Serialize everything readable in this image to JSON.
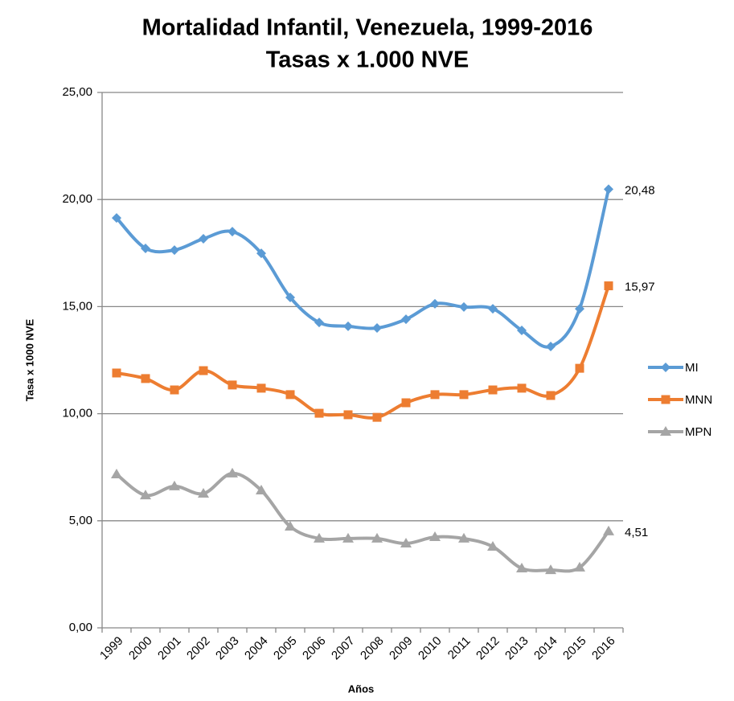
{
  "chart_data": {
    "type": "line",
    "title": "Mortalidad Infantil, Venezuela, 1999-2016",
    "subtitle": "Tasas x 1.000 NVE",
    "x_label": "Años",
    "y_label": "Tasa x 1000 NVE",
    "categories": [
      "1999",
      "2000",
      "2001",
      "2002",
      "2003",
      "2004",
      "2005",
      "2006",
      "2007",
      "2008",
      "2009",
      "2010",
      "2011",
      "2012",
      "2013",
      "2014",
      "2015",
      "2016"
    ],
    "series": [
      {
        "name": "MI",
        "color": "#5b9bd5",
        "marker": "diamond",
        "values": [
          19.14,
          17.72,
          17.64,
          18.17,
          18.5,
          17.49,
          15.43,
          14.26,
          14.08,
          14.0,
          14.41,
          15.13,
          14.98,
          14.9,
          13.89,
          13.14,
          14.9,
          20.48
        ],
        "value_labels": [
          null,
          null,
          null,
          null,
          null,
          null,
          null,
          null,
          null,
          null,
          null,
          null,
          null,
          null,
          null,
          null,
          null,
          "20,48"
        ]
      },
      {
        "name": "MNN",
        "color": "#ed7d31",
        "marker": "square",
        "values": [
          11.9,
          11.64,
          11.11,
          12.01,
          11.34,
          11.19,
          10.89,
          10.02,
          9.95,
          9.83,
          10.51,
          10.89,
          10.89,
          11.11,
          11.19,
          10.85,
          12.12,
          15.97
        ],
        "value_labels": [
          null,
          null,
          null,
          null,
          null,
          null,
          null,
          null,
          null,
          null,
          null,
          null,
          null,
          null,
          null,
          null,
          null,
          "15,97"
        ]
      },
      {
        "name": "MPN",
        "color": "#a5a5a5",
        "marker": "triangle",
        "values": [
          7.17,
          6.19,
          6.61,
          6.27,
          7.21,
          6.42,
          4.73,
          4.17,
          4.17,
          4.17,
          3.94,
          4.24,
          4.17,
          3.79,
          2.78,
          2.7,
          2.82,
          4.51
        ],
        "value_labels": [
          null,
          null,
          null,
          null,
          null,
          null,
          null,
          null,
          null,
          null,
          null,
          null,
          null,
          null,
          null,
          null,
          null,
          "4,51"
        ]
      }
    ],
    "ylim": [
      0,
      25
    ],
    "yticks": [
      {
        "value": 0,
        "label": "0,00"
      },
      {
        "value": 5,
        "label": "5,00"
      },
      {
        "value": 10,
        "label": "10,00"
      },
      {
        "value": 15,
        "label": "15,00"
      },
      {
        "value": 20,
        "label": "20,00"
      },
      {
        "value": 25,
        "label": "25,00"
      }
    ],
    "grid": true,
    "legend": "right"
  }
}
